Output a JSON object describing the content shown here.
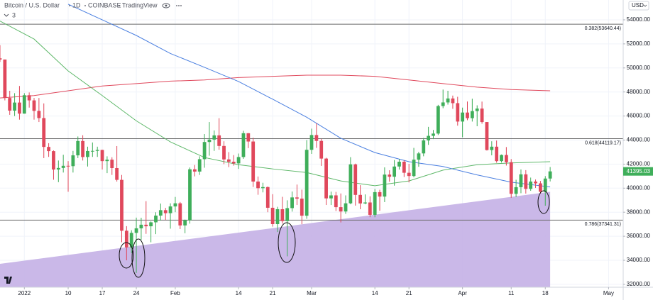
{
  "header": {
    "symbol": "Bitcoin / U.S. Dollar",
    "interval": "1D",
    "exchange": "COINBASE",
    "source": "TradingView",
    "indicators_count": "3",
    "currency": "USD"
  },
  "chart_data": {
    "type": "candlestick",
    "x": [
      "2021-12-27",
      "2021-12-28",
      "2021-12-29",
      "2021-12-30",
      "2021-12-31",
      "2022-01-01",
      "2022-01-02",
      "2022-01-03",
      "2022-01-04",
      "2022-01-05",
      "2022-01-06",
      "2022-01-07",
      "2022-01-08",
      "2022-01-09",
      "2022-01-10",
      "2022-01-11",
      "2022-01-12",
      "2022-01-13",
      "2022-01-14",
      "2022-01-15",
      "2022-01-16",
      "2022-01-17",
      "2022-01-18",
      "2022-01-19",
      "2022-01-20",
      "2022-01-21",
      "2022-01-22",
      "2022-01-23",
      "2022-01-24",
      "2022-01-25",
      "2022-01-26",
      "2022-01-27",
      "2022-01-28",
      "2022-01-29",
      "2022-01-30",
      "2022-01-31",
      "2022-02-01",
      "2022-02-02",
      "2022-02-03",
      "2022-02-04",
      "2022-02-05",
      "2022-02-06",
      "2022-02-07",
      "2022-02-08",
      "2022-02-09",
      "2022-02-10",
      "2022-02-11",
      "2022-02-12",
      "2022-02-13",
      "2022-02-14",
      "2022-02-15",
      "2022-02-16",
      "2022-02-17",
      "2022-02-18",
      "2022-02-19",
      "2022-02-20",
      "2022-02-21",
      "2022-02-22",
      "2022-02-23",
      "2022-02-24",
      "2022-02-25",
      "2022-02-26",
      "2022-02-27",
      "2022-02-28",
      "2022-03-01",
      "2022-03-02",
      "2022-03-03",
      "2022-03-04",
      "2022-03-05",
      "2022-03-06",
      "2022-03-07",
      "2022-03-08",
      "2022-03-09",
      "2022-03-10",
      "2022-03-11",
      "2022-03-12",
      "2022-03-13",
      "2022-03-14",
      "2022-03-15",
      "2022-03-16",
      "2022-03-17",
      "2022-03-18",
      "2022-03-19",
      "2022-03-20",
      "2022-03-21",
      "2022-03-22",
      "2022-03-23",
      "2022-03-24",
      "2022-03-25",
      "2022-03-26",
      "2022-03-27",
      "2022-03-28",
      "2022-03-29",
      "2022-03-30",
      "2022-03-31",
      "2022-04-01",
      "2022-04-02",
      "2022-04-03",
      "2022-04-04",
      "2022-04-05",
      "2022-04-06",
      "2022-04-07",
      "2022-04-08",
      "2022-04-09",
      "2022-04-10",
      "2022-04-11",
      "2022-04-12",
      "2022-04-13",
      "2022-04-14",
      "2022-04-15",
      "2022-04-16",
      "2022-04-17",
      "2022-04-18",
      "2022-04-19"
    ],
    "open": [
      50800,
      50700,
      47500,
      46450,
      47120,
      46200,
      47730,
      47300,
      46430,
      45830,
      43430,
      43080,
      41550,
      41680,
      41860,
      41830,
      42730,
      43920,
      42590,
      43090,
      43100,
      43180,
      42250,
      42370,
      41670,
      40690,
      36460,
      35070,
      36280,
      36660,
      36960,
      36830,
      37160,
      37720,
      38170,
      37920,
      38480,
      38740,
      36900,
      37330,
      41570,
      41380,
      42410,
      43840,
      44040,
      44390,
      43510,
      42390,
      42200,
      42060,
      42590,
      44570,
      43880,
      40550,
      40000,
      40090,
      38370,
      37010,
      38250,
      37260,
      38340,
      39230,
      39130,
      37710,
      43190,
      44420,
      43930,
      42460,
      39150,
      39400,
      38420,
      38060,
      38740,
      41980,
      39440,
      38730,
      38810,
      37780,
      39670,
      39300,
      41130,
      40950,
      41800,
      42200,
      41280,
      41010,
      42370,
      42890,
      43970,
      44350,
      44540,
      46830,
      47130,
      47460,
      47070,
      45540,
      46290,
      45820,
      46410,
      46620,
      45500,
      43170,
      43450,
      42250,
      42760,
      42160,
      39530,
      40080,
      41150,
      39940,
      40550,
      40400,
      39700,
      40800
    ],
    "high": [
      51900,
      50700,
      48100,
      47900,
      48500,
      47900,
      47960,
      47500,
      47500,
      47050,
      43740,
      43140,
      42300,
      42780,
      42250,
      43100,
      44300,
      44400,
      43450,
      43800,
      43450,
      43200,
      42650,
      42570,
      43500,
      41100,
      36840,
      36500,
      37550,
      37540,
      38920,
      37230,
      38000,
      38720,
      38360,
      38740,
      39270,
      38850,
      37390,
      41720,
      41930,
      42650,
      44500,
      45500,
      44800,
      45820,
      43900,
      43000,
      42750,
      42880,
      44770,
      44580,
      44200,
      40970,
      40450,
      40140,
      39500,
      38450,
      39280,
      38990,
      39720,
      40300,
      39880,
      44000,
      44950,
      45400,
      44100,
      42530,
      39710,
      39690,
      39560,
      39400,
      42580,
      42040,
      40250,
      39480,
      39320,
      39940,
      39870,
      41730,
      41490,
      42340,
      42430,
      42320,
      42020,
      43350,
      43020,
      44180,
      45100,
      44840,
      46930,
      48200,
      48100,
      47700,
      47600,
      46700,
      47210,
      47440,
      46890,
      47200,
      45500,
      43900,
      43960,
      42800,
      43420,
      42420,
      40700,
      41560,
      41500,
      40880,
      40720,
      40600,
      41000,
      41760
    ],
    "low": [
      50500,
      47300,
      46100,
      46000,
      45700,
      46200,
      46700,
      45700,
      45500,
      42500,
      42600,
      40700,
      40500,
      41300,
      39700,
      41300,
      42500,
      42300,
      41800,
      42600,
      42600,
      41550,
      41250,
      41100,
      40550,
      35500,
      34000,
      34600,
      32950,
      35700,
      36200,
      35500,
      36180,
      37300,
      37350,
      36630,
      38000,
      36600,
      36250,
      37050,
      40980,
      41100,
      41700,
      42700,
      43100,
      43200,
      42000,
      41750,
      41870,
      41600,
      42440,
      43330,
      40100,
      39450,
      39650,
      38000,
      36800,
      36350,
      37050,
      34330,
      38050,
      38600,
      37000,
      37450,
      42850,
      43350,
      41850,
      38600,
      38600,
      38100,
      37150,
      37860,
      38660,
      38550,
      38250,
      38660,
      37590,
      37580,
      38120,
      38840,
      40540,
      40210,
      41550,
      40930,
      40480,
      40900,
      41780,
      42650,
      43600,
      44080,
      44420,
      46650,
      46950,
      46600,
      45200,
      44230,
      45650,
      45540,
      45150,
      45360,
      43130,
      42730,
      42120,
      42130,
      41880,
      39200,
      39260,
      39580,
      39550,
      39780,
      40020,
      39550,
      38540,
      40560
    ],
    "close": [
      50700,
      47500,
      46450,
      47120,
      46200,
      47730,
      47300,
      46430,
      45830,
      43430,
      43080,
      41550,
      41680,
      41860,
      41830,
      42730,
      43920,
      42590,
      43090,
      43100,
      43180,
      42250,
      42370,
      41670,
      40690,
      36460,
      35070,
      36280,
      36660,
      36960,
      36830,
      37160,
      37720,
      38170,
      37920,
      38480,
      38740,
      36900,
      37330,
      41570,
      41380,
      42410,
      43840,
      44040,
      44390,
      43510,
      42390,
      42200,
      42060,
      42590,
      44570,
      43880,
      40550,
      40000,
      40090,
      38370,
      37010,
      38250,
      37260,
      38340,
      39230,
      39130,
      37710,
      43190,
      44420,
      43930,
      42460,
      39150,
      39400,
      38420,
      38060,
      38740,
      41980,
      39440,
      38730,
      38810,
      37780,
      39670,
      39300,
      41130,
      40950,
      41800,
      42200,
      41280,
      41010,
      42370,
      42890,
      43970,
      44350,
      44540,
      46830,
      47130,
      47460,
      47070,
      45540,
      46290,
      45820,
      46410,
      46620,
      45500,
      43170,
      43450,
      42250,
      42760,
      42160,
      39530,
      40080,
      41150,
      39940,
      40550,
      40400,
      39700,
      40800,
      41395.03
    ],
    "up_color": "#3fae5a",
    "down_color": "#e0485c",
    "lines": [
      {
        "color": "#e0485c",
        "x": [
          "2021-12-27",
          "2022-01-03",
          "2022-01-10",
          "2022-01-17",
          "2022-01-24",
          "2022-01-31",
          "2022-02-07",
          "2022-02-14",
          "2022-02-21",
          "2022-02-28",
          "2022-03-07",
          "2022-03-14",
          "2022-03-21",
          "2022-03-28",
          "2022-04-04",
          "2022-04-11",
          "2022-04-19"
        ],
        "values": [
          47500,
          47700,
          48100,
          48500,
          48700,
          48900,
          49000,
          49200,
          49300,
          49400,
          49400,
          49300,
          49000,
          48700,
          48400,
          48200,
          48100
        ]
      },
      {
        "color": "#5fb86a",
        "x": [
          "2021-12-27",
          "2022-01-03",
          "2022-01-10",
          "2022-01-17",
          "2022-01-24",
          "2022-01-31",
          "2022-02-07",
          "2022-02-14",
          "2022-02-21",
          "2022-02-28",
          "2022-03-07",
          "2022-03-14",
          "2022-03-21",
          "2022-03-28",
          "2022-04-04",
          "2022-04-11",
          "2022-04-19"
        ],
        "values": [
          53900,
          52400,
          49750,
          47700,
          45600,
          43850,
          42550,
          41950,
          41600,
          41300,
          40600,
          40200,
          40600,
          41500,
          41950,
          42100,
          42200
        ]
      },
      {
        "color": "#4a7fe0",
        "x": [
          "2022-01-10",
          "2022-01-17",
          "2022-01-24",
          "2022-01-31",
          "2022-02-07",
          "2022-02-14",
          "2022-02-21",
          "2022-02-28",
          "2022-03-07",
          "2022-03-14",
          "2022-03-21",
          "2022-03-28",
          "2022-04-04",
          "2022-04-11",
          "2022-04-19"
        ],
        "values": [
          55300,
          54000,
          52700,
          51200,
          50050,
          48870,
          47400,
          45900,
          44150,
          42960,
          42200,
          41800,
          41100,
          40500,
          40100
        ]
      }
    ],
    "levels": [
      {
        "label": "0.382(53640.44)",
        "value": 53640.44
      },
      {
        "label": "0.618(44119.17)",
        "value": 44119.17
      },
      {
        "label": "0.786(37341.31)",
        "value": 37341.31
      }
    ],
    "trendline": {
      "color": "#c4b0e6",
      "x": [
        "2021-12-26",
        "2022-04-19"
      ],
      "values": [
        33650,
        39700
      ]
    },
    "xlim": [
      "2021-12-27",
      "2022-05-04"
    ],
    "xticks": [
      {
        "value": "2022-01-01",
        "label": "2022"
      },
      {
        "value": "2022-01-10",
        "label": "10"
      },
      {
        "value": "2022-01-17",
        "label": "17"
      },
      {
        "value": "2022-01-24",
        "label": "24"
      },
      {
        "value": "2022-02-01",
        "label": "Feb"
      },
      {
        "value": "2022-02-14",
        "label": "14"
      },
      {
        "value": "2022-02-21",
        "label": "21"
      },
      {
        "value": "2022-03-01",
        "label": "Mar"
      },
      {
        "value": "2022-03-14",
        "label": "14"
      },
      {
        "value": "2022-03-21",
        "label": "21"
      },
      {
        "value": "2022-04-01",
        "label": "Apr"
      },
      {
        "value": "2022-04-11",
        "label": "11"
      },
      {
        "value": "2022-04-18",
        "label": "18"
      },
      {
        "value": "2022-05-01",
        "label": "May"
      }
    ],
    "ylim": [
      31760,
      55650
    ],
    "yticks": [
      {
        "value": 32000,
        "label": "32000.00"
      },
      {
        "value": 34000,
        "label": "34000.00"
      },
      {
        "value": 36000,
        "label": "36000.00"
      },
      {
        "value": 38000,
        "label": "38000.00"
      },
      {
        "value": 40000,
        "label": "40000.00"
      },
      {
        "value": 42000,
        "label": "42000.00"
      },
      {
        "value": 44000,
        "label": "44000.00"
      },
      {
        "value": 46000,
        "label": "46000.00"
      },
      {
        "value": 48000,
        "label": "48000.00"
      },
      {
        "value": 50000,
        "label": "50000.00"
      },
      {
        "value": 52000,
        "label": "52000.00"
      },
      {
        "value": 54000,
        "label": "54000.00"
      }
    ],
    "grid": true
  }
}
